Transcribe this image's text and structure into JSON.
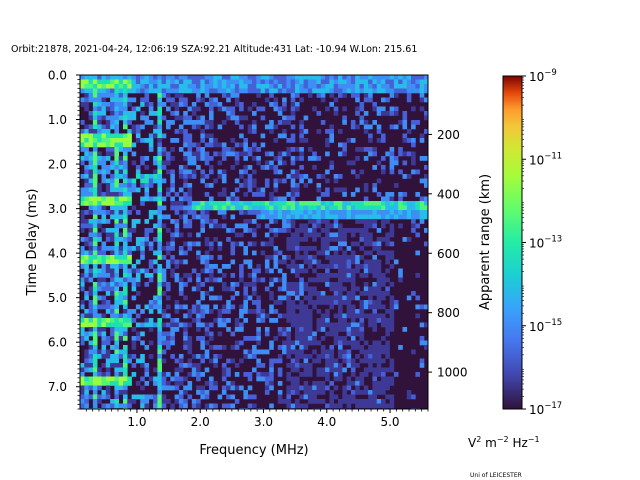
{
  "title": "Orbit:21878, 2021-04-24, 12:06:19 SZA:92.21 Altitude:431 Lat: -10.94 W.Lon: 215.61",
  "footer": "Uni of LEICESTER",
  "chart_data": {
    "type": "heatmap",
    "xlabel": "Frequency (MHz)",
    "ylabel": "Time Delay (ms)",
    "y2label": "Apparent range (km)",
    "xlim": [
      0.1,
      5.6
    ],
    "ylim": [
      7.5,
      0.0
    ],
    "x_ticks": [
      1.0,
      2.0,
      3.0,
      4.0,
      5.0
    ],
    "x_tick_labels": [
      "1.0",
      "2.0",
      "3.0",
      "4.0",
      "5.0"
    ],
    "y_ticks": [
      0.0,
      1.0,
      2.0,
      3.0,
      4.0,
      5.0,
      6.0,
      7.0
    ],
    "y_tick_labels": [
      "0.0",
      "1.0",
      "2.0",
      "3.0",
      "4.0",
      "5.0",
      "6.0",
      "7.0"
    ],
    "y2_ticks_km": [
      200,
      400,
      600,
      800,
      1000
    ],
    "y2_tick_labels": [
      "200",
      "400",
      "600",
      "800",
      "1000"
    ],
    "colorbar": {
      "colormap": "turbo",
      "scale": "log",
      "range": [
        1e-17,
        1e-09
      ],
      "tick_exponents": [
        -17,
        -15,
        -13,
        -11,
        -9
      ],
      "tick_labels": [
        "10",
        "10",
        "10",
        "10",
        "10"
      ],
      "tick_sups": [
        "−17",
        "−15",
        "−13",
        "−11",
        "−9"
      ],
      "unit_parts": [
        "V",
        "2",
        " m",
        "−2",
        " Hz",
        "−1"
      ]
    },
    "features": {
      "ground_echo_delay_ms": 2.9,
      "ground_echo_freq_start_mhz": 1.8,
      "vertical_lines_mhz": [
        0.3,
        0.65,
        0.78,
        1.33
      ],
      "horizontal_bands_ms": [
        0.15,
        1.4,
        2.8,
        4.1,
        5.5,
        6.8
      ]
    }
  }
}
